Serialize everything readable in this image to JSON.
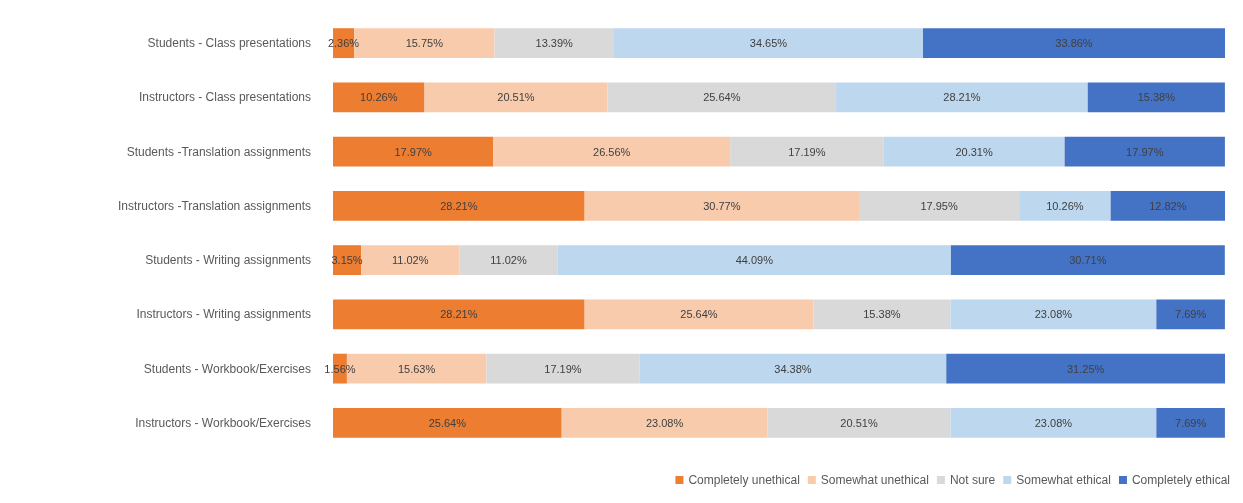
{
  "chart_data": {
    "type": "bar",
    "orientation": "horizontal",
    "stacked": true,
    "legend": "bottom",
    "categories": [
      "Students - Class presentations",
      "Instructors - Class presentations",
      "Students -Translation assignments",
      "Instructors -Translation assignments",
      "Students - Writing assignments",
      "Instructors - Writing assignments",
      "Students - Workbook/Exercises",
      "Instructors - Workbook/Exercises"
    ],
    "series": [
      {
        "name": "Completely unethical",
        "color": "#ed7d31",
        "values": [
          2.36,
          10.26,
          17.97,
          28.21,
          3.15,
          28.21,
          1.56,
          25.64
        ],
        "value_labels": [
          "2.36%",
          "10.26%",
          "17.97%",
          "28.21%",
          "3.15%",
          "28.21%",
          "1.56%",
          "25.64%"
        ]
      },
      {
        "name": "Somewhat unethical",
        "color": "#f8cbad",
        "values": [
          15.75,
          20.51,
          26.56,
          30.77,
          11.02,
          25.64,
          15.63,
          23.08
        ],
        "value_labels": [
          "15.75%",
          "20.51%",
          "26.56%",
          "30.77%",
          "11.02%",
          "25.64%",
          "15.63%",
          "23.08%"
        ]
      },
      {
        "name": "Not sure",
        "color": "#d9d9d9",
        "values": [
          13.39,
          25.64,
          17.19,
          17.95,
          11.02,
          15.38,
          17.19,
          20.51
        ],
        "value_labels": [
          "13.39%",
          "25.64%",
          "17.19%",
          "17.95%",
          "11.02%",
          "15.38%",
          "17.19%",
          "20.51%"
        ]
      },
      {
        "name": "Somewhat ethical",
        "color": "#bdd7ee",
        "values": [
          34.65,
          28.21,
          20.31,
          10.26,
          44.09,
          23.08,
          34.38,
          23.08
        ],
        "value_labels": [
          "34.65%",
          "28.21%",
          "20.31%",
          "10.26%",
          "44.09%",
          "23.08%",
          "34.38%",
          "23.08%"
        ]
      },
      {
        "name": "Completely ethical",
        "color": "#4472c4",
        "values": [
          33.86,
          15.38,
          17.97,
          12.82,
          30.71,
          7.69,
          31.25,
          7.69
        ],
        "value_labels": [
          "33.86%",
          "15.38%",
          "17.97%",
          "12.82%",
          "30.71%",
          "7.69%",
          "31.25%",
          "7.69%"
        ]
      }
    ]
  }
}
